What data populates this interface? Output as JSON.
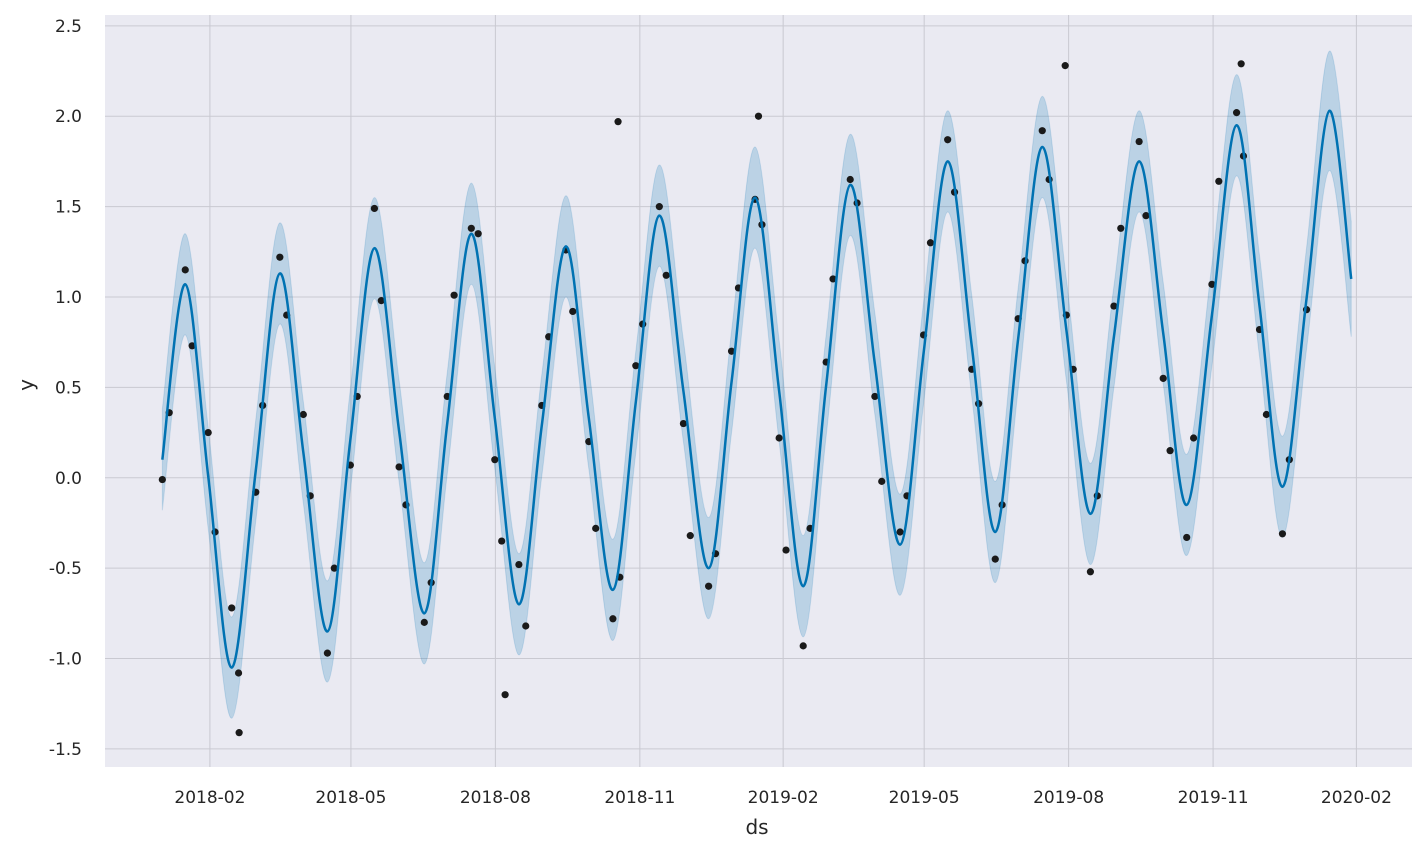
{
  "chart_data": {
    "type": "forecast",
    "x_label": "ds",
    "y_label": "y",
    "xlim": [
      2017.9,
      2020.18
    ],
    "ylim": [
      -1.6,
      2.56
    ],
    "grid": true,
    "xticks": [
      {
        "value": 2018.083,
        "label": "2018-02"
      },
      {
        "value": 2018.329,
        "label": "2018-05"
      },
      {
        "value": 2018.581,
        "label": "2018-08"
      },
      {
        "value": 2018.833,
        "label": "2018-11"
      },
      {
        "value": 2019.083,
        "label": "2019-02"
      },
      {
        "value": 2019.329,
        "label": "2019-05"
      },
      {
        "value": 2019.581,
        "label": "2019-08"
      },
      {
        "value": 2019.833,
        "label": "2019-11"
      },
      {
        "value": 2020.083,
        "label": "2020-02"
      }
    ],
    "yticks": [
      -1.5,
      {
        "value": -1.0,
        "label": "-1.0"
      },
      -0.5,
      {
        "value": 0.0,
        "label": "0.0"
      },
      0.5,
      {
        "value": 1.0,
        "label": "1.0"
      },
      1.5,
      {
        "value": 2.0,
        "label": "2.0"
      },
      2.5
    ],
    "forecast": {
      "color": "#0072B2",
      "band_color": "#0072B2",
      "x": [
        2018.0,
        2018.04,
        2018.08,
        2018.121,
        2018.163,
        2018.205,
        2018.246,
        2018.288,
        2018.328,
        2018.37,
        2018.413,
        2018.457,
        2018.497,
        2018.539,
        2018.58,
        2018.622,
        2018.662,
        2018.704,
        2018.744,
        2018.786,
        2018.826,
        2018.867,
        2018.909,
        2018.953,
        2018.993,
        2019.034,
        2019.076,
        2019.118,
        2019.158,
        2019.2,
        2019.243,
        2019.287,
        2019.328,
        2019.37,
        2019.412,
        2019.453,
        2019.493,
        2019.535,
        2019.577,
        2019.619,
        2019.66,
        2019.704,
        2019.746,
        2019.787,
        2019.831,
        2019.874,
        2019.914,
        2019.954,
        2019.996,
        2020.036,
        2020.074
      ],
      "values": [
        0.1,
        1.07,
        0.01,
        -1.05,
        0.04,
        1.13,
        0.14,
        -0.85,
        0.21,
        1.27,
        0.26,
        -0.75,
        0.3,
        1.35,
        0.33,
        -0.7,
        0.29,
        1.28,
        0.33,
        -0.62,
        0.42,
        1.45,
        0.48,
        -0.5,
        0.53,
        1.55,
        0.48,
        -0.6,
        0.51,
        1.62,
        0.63,
        -0.37,
        0.69,
        1.75,
        0.73,
        -0.3,
        0.77,
        1.83,
        0.82,
        -0.2,
        0.78,
        1.75,
        0.8,
        -0.15,
        0.9,
        1.95,
        0.95,
        -0.05,
        0.99,
        2.03,
        1.1
      ],
      "upper": [
        0.38,
        1.35,
        0.28,
        -0.77,
        0.32,
        1.41,
        0.42,
        -0.57,
        0.49,
        1.55,
        0.54,
        -0.47,
        0.58,
        1.63,
        0.61,
        -0.42,
        0.57,
        1.56,
        0.61,
        -0.34,
        0.7,
        1.73,
        0.76,
        -0.22,
        0.81,
        1.83,
        0.76,
        -0.32,
        0.79,
        1.9,
        0.91,
        -0.09,
        0.97,
        2.03,
        1.01,
        -0.02,
        1.05,
        2.11,
        1.1,
        0.08,
        1.06,
        2.03,
        1.08,
        0.13,
        1.18,
        2.23,
        1.23,
        0.23,
        1.27,
        2.36,
        1.42
      ],
      "lower": [
        -0.18,
        0.79,
        -0.28,
        -1.33,
        -0.24,
        0.85,
        -0.14,
        -1.13,
        -0.07,
        0.99,
        -0.02,
        -1.03,
        0.02,
        1.07,
        0.05,
        -0.98,
        0.01,
        1.0,
        0.05,
        -0.9,
        0.14,
        1.17,
        0.2,
        -0.78,
        0.25,
        1.27,
        0.2,
        -0.88,
        0.23,
        1.34,
        0.35,
        -0.65,
        0.41,
        1.47,
        0.45,
        -0.58,
        0.49,
        1.55,
        0.54,
        -0.48,
        0.5,
        1.47,
        0.52,
        -0.43,
        0.62,
        1.67,
        0.67,
        -0.33,
        0.71,
        1.7,
        0.78
      ]
    },
    "observed": {
      "color": "#1a1a1a",
      "x": [
        2018.0,
        2018.012,
        2018.04,
        2018.052,
        2018.08,
        2018.092,
        2018.121,
        2018.133,
        2018.163,
        2018.175,
        2018.205,
        2018.217,
        2018.246,
        2018.258,
        2018.288,
        2018.3,
        2018.328,
        2018.34,
        2018.37,
        2018.382,
        2018.413,
        2018.425,
        2018.457,
        2018.469,
        2018.497,
        2018.509,
        2018.539,
        2018.551,
        2018.58,
        2018.592,
        2018.622,
        2018.634,
        2018.662,
        2018.674,
        2018.704,
        2018.716,
        2018.744,
        2018.756,
        2018.786,
        2018.798,
        2018.826,
        2018.838,
        2018.867,
        2018.879,
        2018.909,
        2018.921,
        2018.953,
        2018.965,
        2018.993,
        2019.005,
        2019.034,
        2019.046,
        2019.076,
        2019.088,
        2019.118,
        2019.13,
        2019.158,
        2019.17,
        2019.2,
        2019.212,
        2019.243,
        2019.255,
        2019.287,
        2019.299,
        2019.328,
        2019.34,
        2019.37,
        2019.382,
        2019.412,
        2019.424,
        2019.453,
        2019.465,
        2019.493,
        2019.505,
        2019.535,
        2019.547,
        2019.577,
        2019.589,
        2019.619,
        2019.631,
        2019.66,
        2019.672,
        2019.704,
        2019.716,
        2019.746,
        2019.758,
        2019.787,
        2019.799,
        2019.831,
        2019.843,
        2019.874,
        2019.886,
        2019.914,
        2019.926,
        2019.954,
        2019.966,
        2019.996,
        2018.134,
        2019.04,
        2018.598,
        2018.795,
        2019.575,
        2019.882
      ],
      "values": [
        -0.01,
        0.36,
        1.15,
        0.73,
        0.25,
        -0.3,
        -0.72,
        -1.08,
        -0.08,
        0.4,
        1.22,
        0.9,
        0.35,
        -0.1,
        -0.97,
        -0.5,
        0.07,
        0.45,
        1.49,
        0.98,
        0.06,
        -0.15,
        -0.8,
        -0.58,
        0.45,
        1.01,
        1.38,
        1.35,
        0.1,
        -0.35,
        -0.48,
        -0.82,
        0.4,
        0.78,
        1.26,
        0.92,
        0.2,
        -0.28,
        -0.78,
        -0.55,
        0.62,
        0.85,
        1.5,
        1.12,
        0.3,
        -0.32,
        -0.6,
        -0.42,
        0.7,
        1.05,
        1.54,
        1.4,
        0.22,
        -0.4,
        -0.93,
        -0.28,
        0.64,
        1.1,
        1.65,
        1.52,
        0.45,
        -0.02,
        -0.3,
        -0.1,
        0.79,
        1.3,
        1.87,
        1.58,
        0.6,
        0.41,
        -0.45,
        -0.15,
        0.88,
        1.2,
        1.92,
        1.65,
        0.9,
        0.6,
        -0.52,
        -0.1,
        0.95,
        1.38,
        1.86,
        1.45,
        0.55,
        0.15,
        -0.33,
        0.22,
        1.07,
        1.64,
        2.02,
        1.78,
        0.82,
        0.35,
        -0.31,
        0.1,
        0.93,
        -1.41,
        2.0,
        -1.2,
        1.97,
        2.28,
        2.29
      ]
    }
  }
}
